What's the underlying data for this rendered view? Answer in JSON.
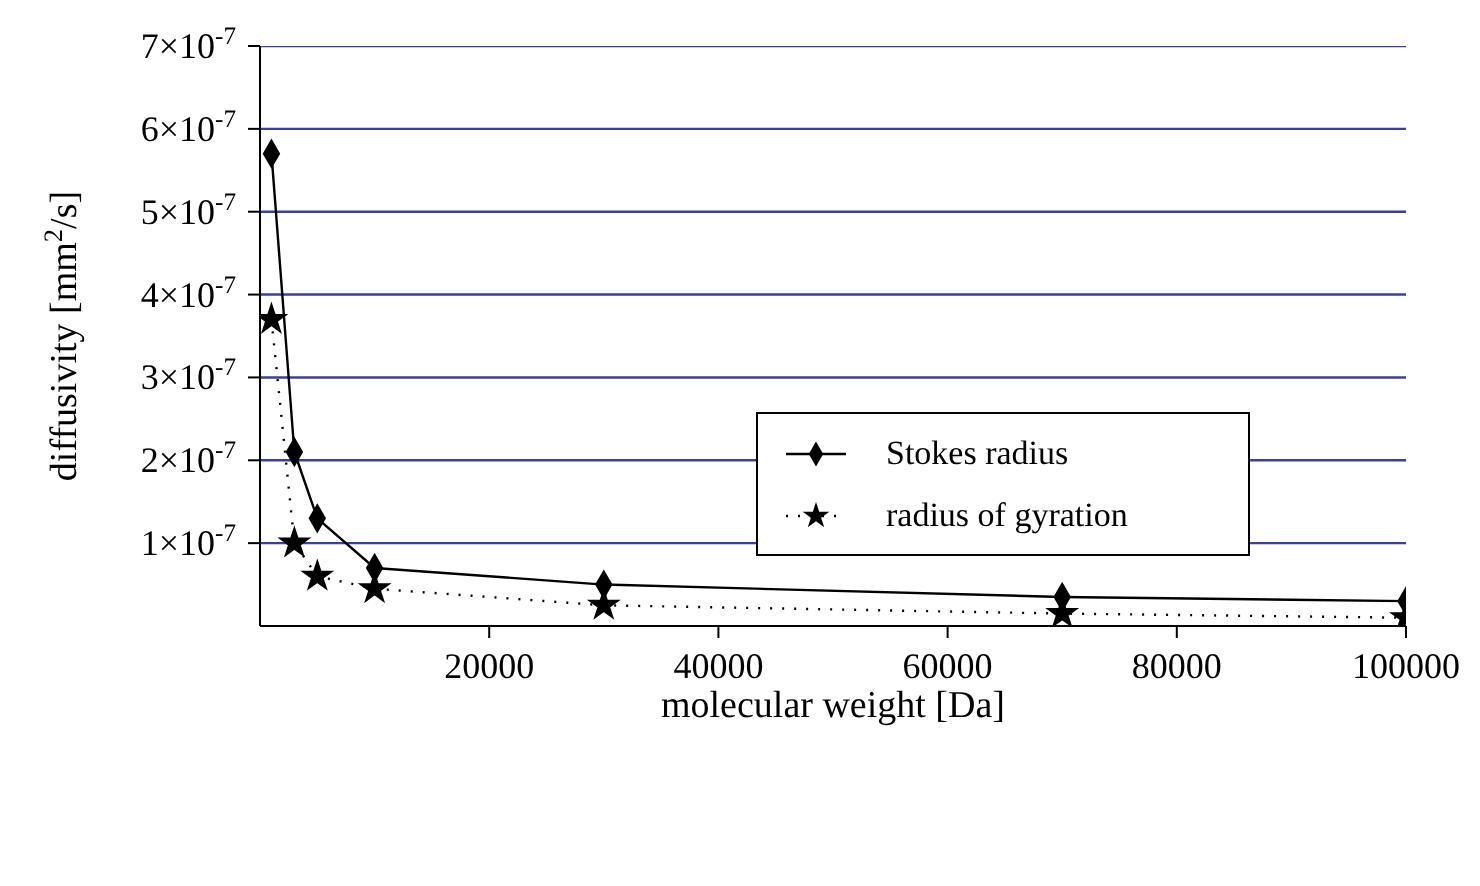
{
  "chart_data": {
    "type": "line",
    "xlabel": "molecular weight [Da]",
    "ylabel": "diffusivity [mm$^{2}$/s]",
    "x": [
      1000,
      3000,
      5000,
      10000,
      30000,
      70000,
      100000
    ],
    "series": [
      {
        "name": "Stokes radius",
        "color": "#000000",
        "marker": "diamond",
        "line_style": "solid",
        "values": [
          5.7e-07,
          2.1e-07,
          1.3e-07,
          7e-08,
          5e-08,
          3.5e-08,
          3e-08
        ]
      },
      {
        "name": "radius of gyration",
        "color": "#000000",
        "marker": "star",
        "line_style": "dotted",
        "values": [
          3.7e-07,
          1e-07,
          6e-08,
          4.5e-08,
          2.5e-08,
          1.5e-08,
          1e-08
        ]
      }
    ],
    "xlim": [
      0,
      100000
    ],
    "xticks": [
      20000,
      40000,
      60000,
      80000,
      100000
    ],
    "ylim": [
      0,
      7e-07
    ],
    "yticks": [
      {
        "value": 1e-07,
        "label": "1×10$^{-7}$"
      },
      {
        "value": 2e-07,
        "label": "2×10$^{-7}$"
      },
      {
        "value": 3e-07,
        "label": "3×10$^{-7}$"
      },
      {
        "value": 4e-07,
        "label": "4×10$^{-7}$"
      },
      {
        "value": 5e-07,
        "label": "5×10$^{-7}$"
      },
      {
        "value": 6e-07,
        "label": "6×10$^{-7}$"
      },
      {
        "value": 7e-07,
        "label": "7×10$^{-7}$"
      }
    ],
    "grid": "y",
    "legend": "right"
  }
}
